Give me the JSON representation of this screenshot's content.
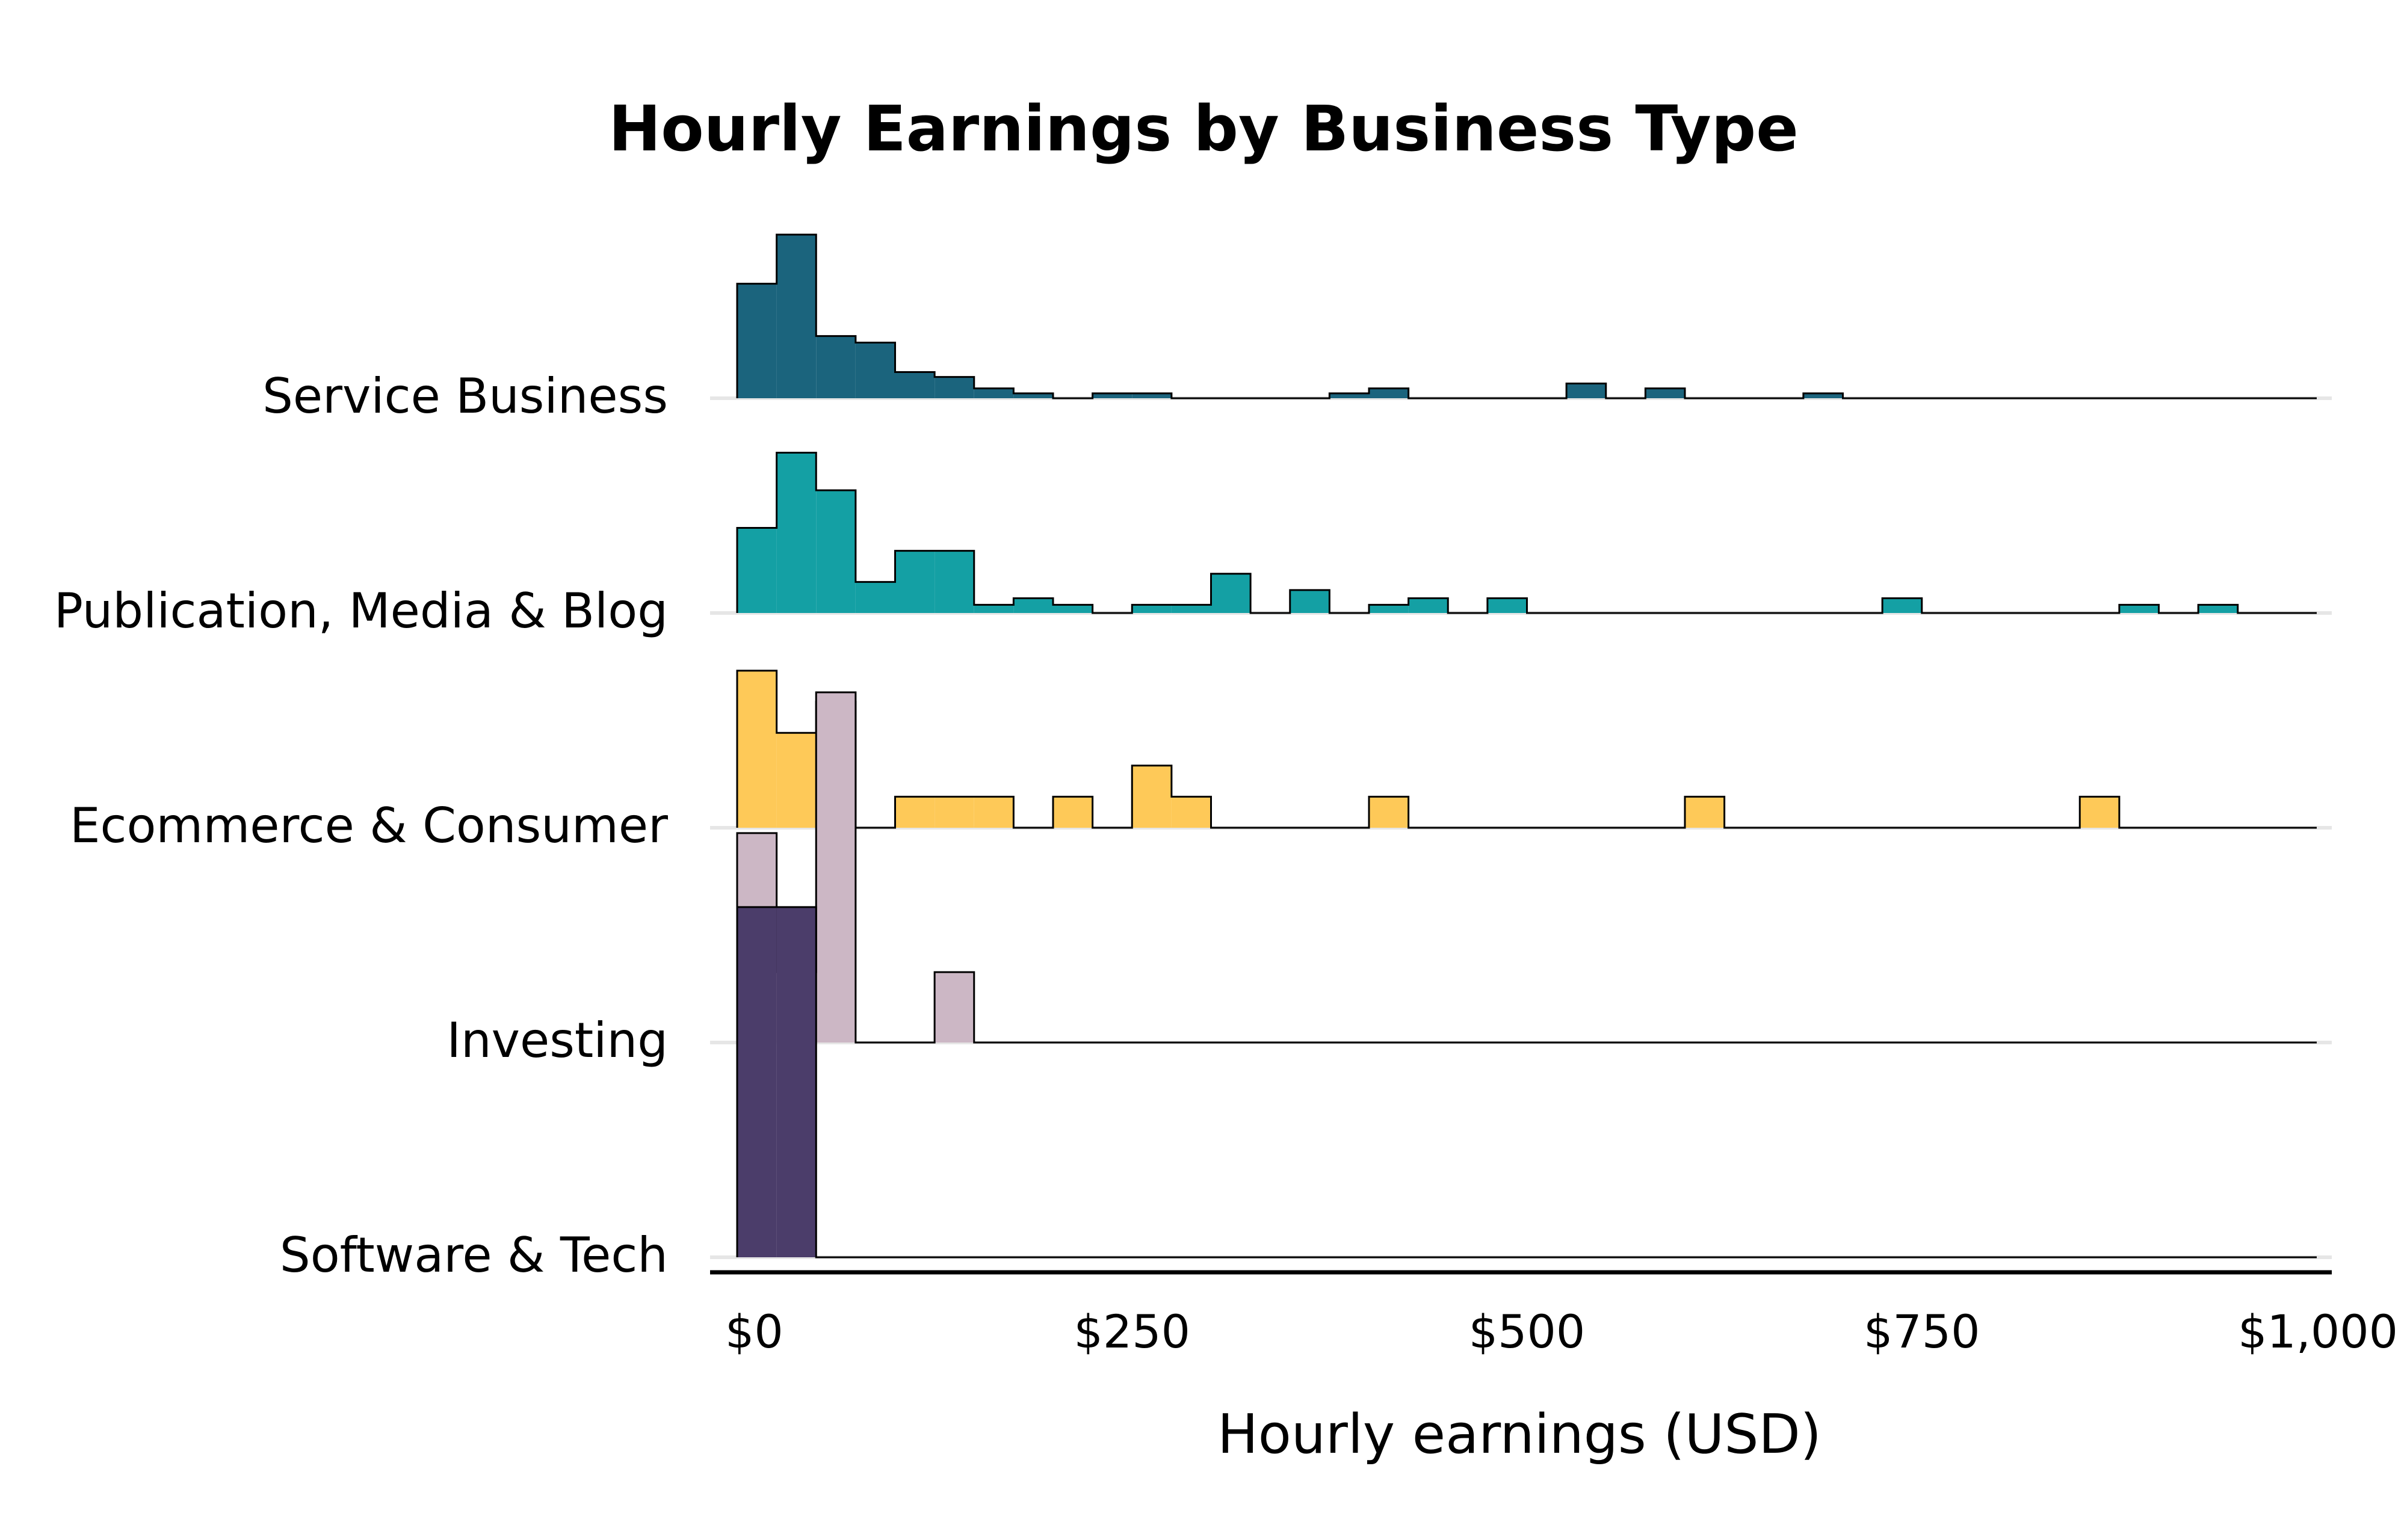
{
  "chart_data": {
    "type": "ridgeline-histogram",
    "title": "Hourly Earnings by Business Type",
    "xlabel": "Hourly earnings (USD)",
    "ylabel": "",
    "xlim": [
      0,
      1000
    ],
    "bin_width": 25,
    "x_ticks": [
      0,
      250,
      500,
      750,
      1000
    ],
    "x_tick_labels": [
      "$0",
      "$250",
      "$500",
      "$750",
      "$1,000"
    ],
    "series": [
      {
        "name": "Service Business",
        "color": "#1b647d",
        "bins": [
          [
            0,
            0.7
          ],
          [
            25,
            1.0
          ],
          [
            50,
            0.38
          ],
          [
            75,
            0.34
          ],
          [
            100,
            0.16
          ],
          [
            125,
            0.13
          ],
          [
            150,
            0.06
          ],
          [
            175,
            0.03
          ],
          [
            225,
            0.03
          ],
          [
            250,
            0.03
          ],
          [
            375,
            0.03
          ],
          [
            400,
            0.06
          ],
          [
            525,
            0.09
          ],
          [
            575,
            0.06
          ],
          [
            675,
            0.03
          ]
        ]
      },
      {
        "name": "Publication, Media & Blog",
        "color": "#14a0a4",
        "bins": [
          [
            0,
            0.52
          ],
          [
            25,
            0.98
          ],
          [
            50,
            0.75
          ],
          [
            75,
            0.19
          ],
          [
            100,
            0.38
          ],
          [
            125,
            0.38
          ],
          [
            150,
            0.05
          ],
          [
            175,
            0.09
          ],
          [
            200,
            0.05
          ],
          [
            250,
            0.05
          ],
          [
            275,
            0.05
          ],
          [
            300,
            0.24
          ],
          [
            350,
            0.14
          ],
          [
            400,
            0.05
          ],
          [
            425,
            0.09
          ],
          [
            475,
            0.09
          ],
          [
            725,
            0.09
          ],
          [
            875,
            0.05
          ],
          [
            925,
            0.05
          ]
        ]
      },
      {
        "name": "Ecommerce & Consumer",
        "color": "#fec958",
        "bins": [
          [
            0,
            0.96
          ],
          [
            25,
            0.58
          ],
          [
            50,
            0.77
          ],
          [
            100,
            0.19
          ],
          [
            125,
            0.19
          ],
          [
            150,
            0.19
          ],
          [
            200,
            0.19
          ],
          [
            250,
            0.38
          ],
          [
            275,
            0.19
          ],
          [
            400,
            0.19
          ],
          [
            600,
            0.19
          ],
          [
            850,
            0.19
          ]
        ]
      },
      {
        "name": "Investing",
        "color": "#ccb7c5",
        "bins": [
          [
            0,
            1.28
          ],
          [
            25,
            0.43
          ],
          [
            50,
            2.14
          ],
          [
            125,
            0.43
          ]
        ]
      },
      {
        "name": "Software & Tech",
        "color": "#4b3d6a",
        "bins": [
          [
            0,
            2.14
          ],
          [
            25,
            2.14
          ]
        ]
      }
    ]
  }
}
